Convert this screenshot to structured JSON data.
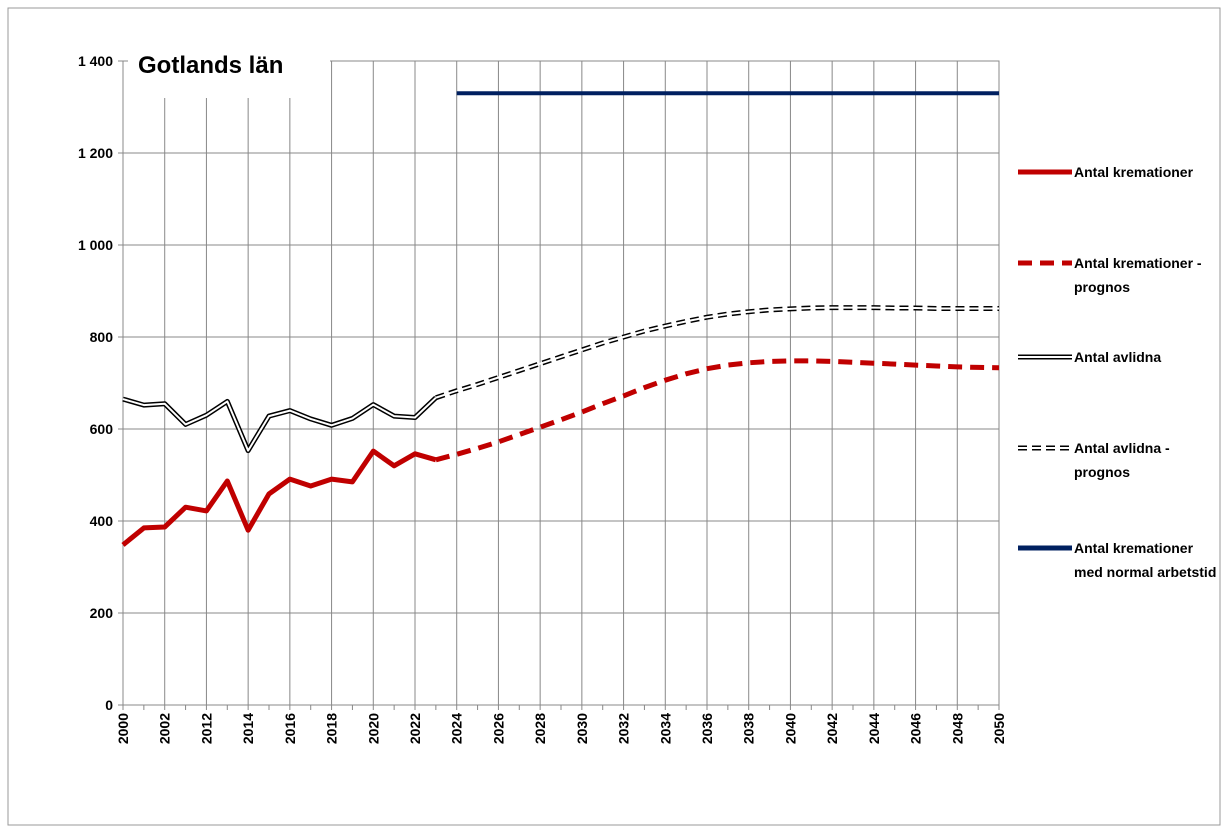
{
  "chart_data": {
    "type": "line",
    "title": "Gotlands län",
    "categories": [
      "2000",
      null,
      "2002",
      null,
      "2012",
      null,
      "2014",
      null,
      "2016",
      null,
      "2018",
      null,
      "2020",
      null,
      "2022",
      null,
      "2024",
      null,
      "2026",
      null,
      "2028",
      null,
      "2030",
      null,
      "2032",
      null,
      "2034",
      null,
      "2036",
      null,
      "2038",
      null,
      "2040",
      null,
      "2042",
      null,
      "2044",
      null,
      "2046",
      null,
      "2048",
      null,
      "2050"
    ],
    "series": [
      {
        "name": "Antal kremationer",
        "color": "#c00000",
        "line_style": "solid",
        "double": false,
        "values": [
          348,
          385,
          387,
          430,
          422,
          487,
          380,
          459,
          491,
          476,
          491,
          485,
          552,
          520,
          546,
          533,
          null,
          null,
          null,
          null,
          null,
          null,
          null,
          null,
          null,
          null,
          null,
          null,
          null,
          null,
          null,
          null,
          null,
          null,
          null,
          null,
          null,
          null,
          null,
          null,
          null,
          null,
          null
        ]
      },
      {
        "name": "Antal kremationer - prognos",
        "color": "#c00000",
        "line_style": "dashed",
        "double": false,
        "values": [
          null,
          null,
          null,
          null,
          null,
          null,
          null,
          null,
          null,
          null,
          null,
          null,
          null,
          null,
          null,
          533,
          545,
          558,
          572,
          588,
          604,
          620,
          637,
          655,
          672,
          690,
          706,
          720,
          731,
          739,
          744,
          747,
          748,
          748,
          747,
          745,
          743,
          741,
          739,
          737,
          735,
          734,
          733
        ]
      },
      {
        "name": "Antal avlidna",
        "color": "#000000",
        "line_style": "solid",
        "double": true,
        "values": [
          665,
          652,
          655,
          610,
          630,
          660,
          553,
          628,
          640,
          622,
          608,
          623,
          653,
          628,
          625,
          668,
          null,
          null,
          null,
          null,
          null,
          null,
          null,
          null,
          null,
          null,
          null,
          null,
          null,
          null,
          null,
          null,
          null,
          null,
          null,
          null,
          null,
          null,
          null,
          null,
          null,
          null,
          null
        ]
      },
      {
        "name": "Antal avlidna - prognos",
        "color": "#000000",
        "line_style": "dashed",
        "double": true,
        "values": [
          null,
          null,
          null,
          null,
          null,
          null,
          null,
          null,
          null,
          null,
          null,
          null,
          null,
          null,
          null,
          668,
          683,
          697,
          712,
          727,
          742,
          757,
          772,
          787,
          800,
          813,
          824,
          834,
          843,
          850,
          855,
          859,
          861,
          863,
          864,
          864,
          864,
          863,
          863,
          862,
          862,
          862,
          862
        ]
      },
      {
        "name": "Antal kremationer med normal arbetstid",
        "color": "#002060",
        "line_style": "solid",
        "double": false,
        "values": [
          null,
          null,
          null,
          null,
          null,
          null,
          null,
          null,
          null,
          null,
          null,
          null,
          null,
          null,
          null,
          null,
          1330,
          1330,
          1330,
          1330,
          1330,
          1330,
          1330,
          1330,
          1330,
          1330,
          1330,
          1330,
          1330,
          1330,
          1330,
          1330,
          1330,
          1330,
          1330,
          1330,
          1330,
          1330,
          1330,
          1330,
          1330,
          1330,
          1330
        ]
      }
    ],
    "ylim": [
      0,
      1400
    ],
    "yticks": [
      0,
      200,
      400,
      600,
      800,
      {
        "value": 1000,
        "label": "1 000"
      },
      {
        "value": 1200,
        "label": "1 200"
      },
      {
        "value": 1400,
        "label": "1 400"
      }
    ],
    "grid": true,
    "legend": "right"
  }
}
